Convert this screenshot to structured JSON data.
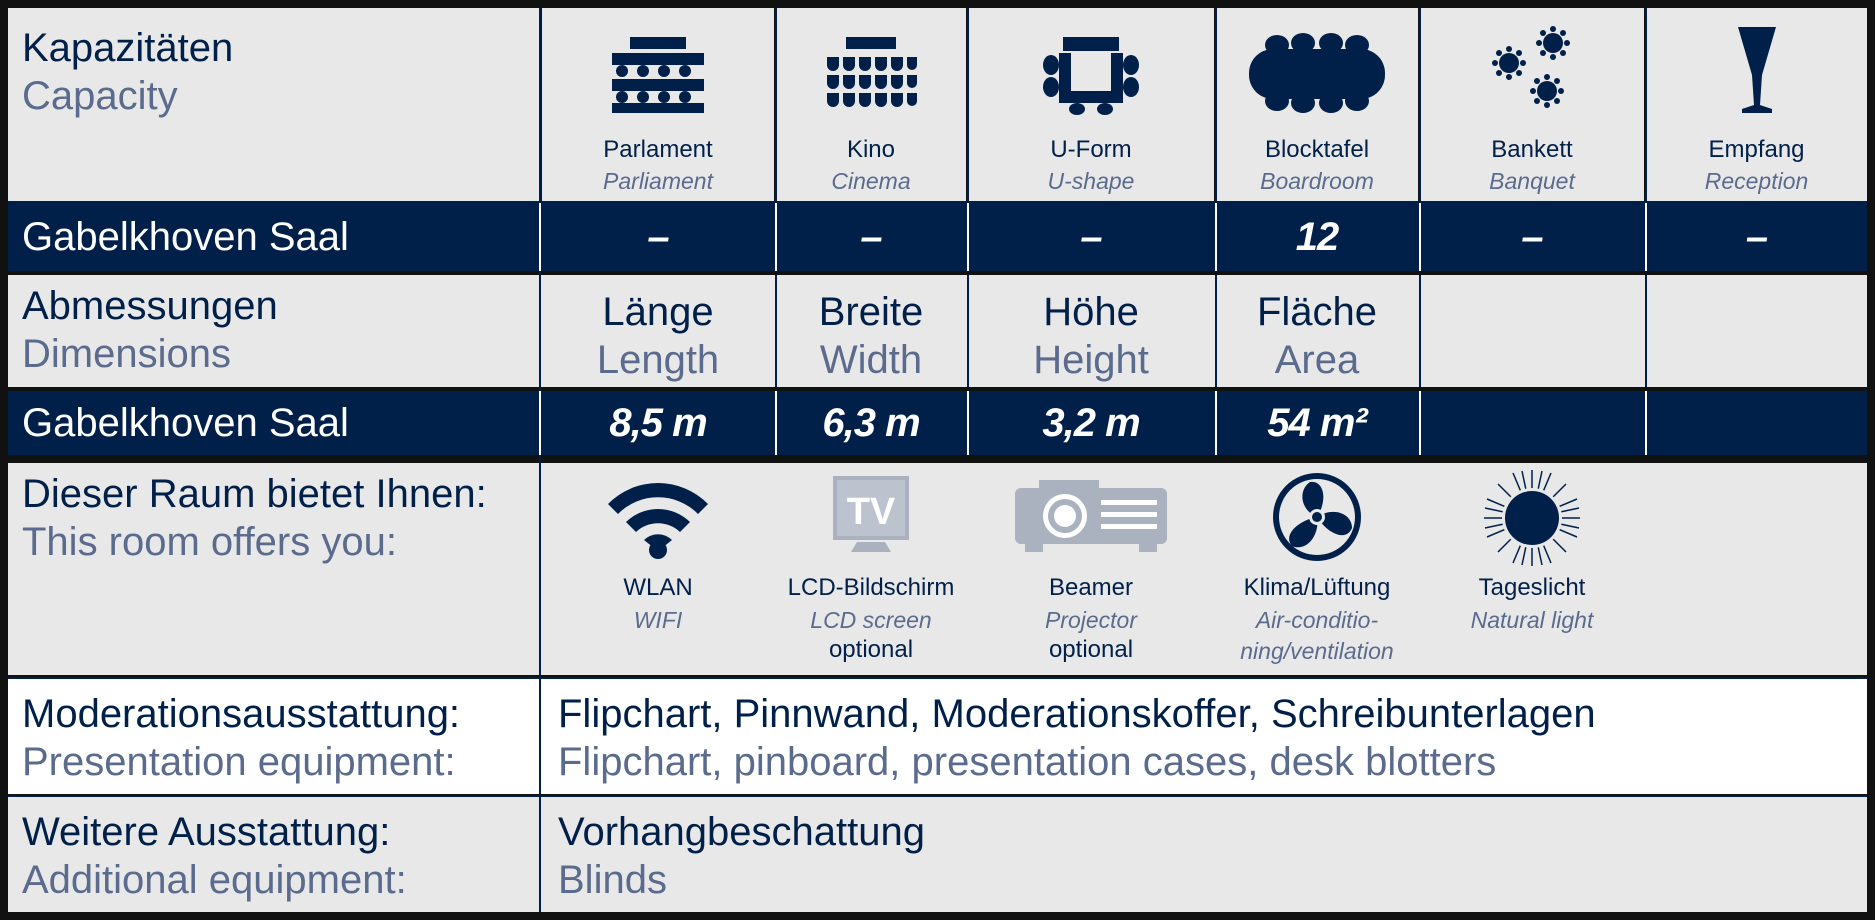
{
  "capacity": {
    "label_de": "Kapazitäten",
    "label_en": "Capacity",
    "layouts": [
      {
        "de": "Parlament",
        "en": "Parliament",
        "icon": "parliament-seating-icon"
      },
      {
        "de": "Kino",
        "en": "Cinema",
        "icon": "cinema-seating-icon"
      },
      {
        "de": "U-Form",
        "en": "U-shape",
        "icon": "u-shape-seating-icon"
      },
      {
        "de": "Blocktafel",
        "en": "Boardroom",
        "icon": "boardroom-table-icon"
      },
      {
        "de": "Bankett",
        "en": "Banquet",
        "icon": "banquet-tables-icon"
      },
      {
        "de": "Empfang",
        "en": "Reception",
        "icon": "reception-glass-icon"
      }
    ],
    "room_name": "Gabelkhoven Saal",
    "values": [
      "–",
      "–",
      "–",
      "12",
      "–",
      "–"
    ]
  },
  "dimensions": {
    "label_de": "Abmessungen",
    "label_en": "Dimensions",
    "headers": [
      {
        "de": "Länge",
        "en": "Length"
      },
      {
        "de": "Breite",
        "en": "Width"
      },
      {
        "de": "Höhe",
        "en": "Height"
      },
      {
        "de": "Fläche",
        "en": "Area"
      }
    ],
    "room_name": "Gabelkhoven Saal",
    "values": [
      "8,5 m",
      "6,3 m",
      "3,2 m",
      "54 m²"
    ]
  },
  "offers": {
    "label_de": "Dieser Raum bietet Ihnen:",
    "label_en": "This room offers you:",
    "items": [
      {
        "de": "WLAN",
        "en": "WIFI",
        "opt": "",
        "icon": "wifi-icon"
      },
      {
        "de": "LCD-Bildschirm",
        "en": "LCD screen",
        "opt": "optional",
        "icon": "tv-icon"
      },
      {
        "de": "Beamer",
        "en": "Projector",
        "opt": "optional",
        "icon": "projector-icon"
      },
      {
        "de": "Klima/Lüftung",
        "en": "Air-conditio-\nning/ventilation",
        "opt": "",
        "icon": "fan-icon"
      },
      {
        "de": "Tageslicht",
        "en": "Natural light",
        "opt": "",
        "icon": "sun-icon"
      }
    ]
  },
  "presentation": {
    "label_de": "Moderationsausstattung:",
    "label_en": "Presentation equipment:",
    "value_de": "Flipchart, Pinnwand, Moderationskoffer, Schreibunterlagen",
    "value_en": "Flipchart, pinboard, presentation cases, desk blotters"
  },
  "additional": {
    "label_de": "Weitere Ausstattung:",
    "label_en": "Additional equipment:",
    "value_de": "Vorhangbeschattung",
    "value_en": "Blinds"
  },
  "colors": {
    "navy": "#00204a",
    "muted_blue": "#5b6b8e",
    "grey_bg": "#e8e8e8"
  }
}
